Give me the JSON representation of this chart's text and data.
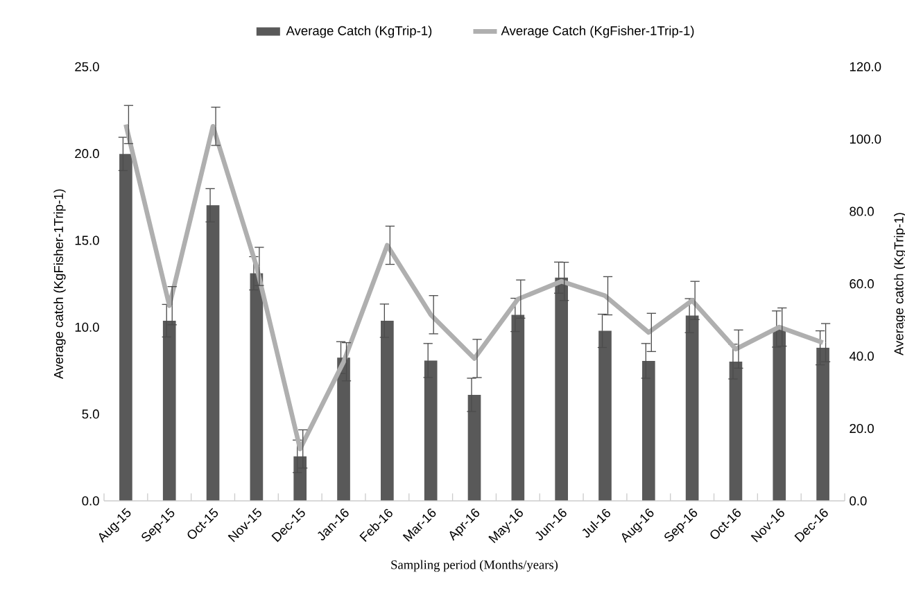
{
  "chart_data": {
    "type": "bar",
    "categories": [
      "Aug-15",
      "Sep-15",
      "Oct-15",
      "Nov-15",
      "Dec-15",
      "Jan-16",
      "Feb-16",
      "Mar-16",
      "Apr-16",
      "May-16",
      "Jun-16",
      "Jul-16",
      "Aug-16",
      "Sep-16",
      "Oct-16",
      "Nov-16",
      "Dec-16"
    ],
    "series": [
      {
        "name": "Average Catch (KgTrip-1)",
        "axis": "y2",
        "color": "#595959",
        "values": [
          95.9,
          49.8,
          81.7,
          62.9,
          12.3,
          39.6,
          49.8,
          38.8,
          29.3,
          51.4,
          61.7,
          47.0,
          38.7,
          51.2,
          38.5,
          47.5,
          42.3
        ],
        "errors": [
          4.6,
          4.5,
          4.6,
          4.6,
          4.5,
          4.4,
          4.6,
          4.7,
          4.6,
          4.6,
          4.3,
          4.6,
          4.8,
          4.7,
          4.8,
          5.0,
          4.7
        ]
      },
      {
        "name": "Average Catch (KgFisher-1Trip-1)",
        "type": "line",
        "color": "#afafaf",
        "values": [
          21.67,
          11.24,
          21.57,
          13.5,
          2.99,
          8.01,
          14.72,
          10.72,
          8.2,
          11.62,
          12.64,
          11.81,
          9.7,
          11.54,
          8.74,
          10.01,
          9.11
        ],
        "errors": [
          1.1,
          1.1,
          1.1,
          1.1,
          1.1,
          1.1,
          1.1,
          1.1,
          1.1,
          1.1,
          1.1,
          1.1,
          1.1,
          1.1,
          1.1,
          1.1,
          1.1
        ]
      }
    ],
    "xlabel": "Sampling period (Months/years)",
    "ylabel": "Average catch (KgFisher-1Trip-1)",
    "y2label": "Average catch (KgTrip-1)",
    "ylim": [
      0,
      25
    ],
    "yticks": [
      {
        "value": 0,
        "label": "0.0"
      },
      {
        "value": 5,
        "label": "5.0"
      },
      {
        "value": 10,
        "label": "10.0"
      },
      {
        "value": 15,
        "label": "15.0"
      },
      {
        "value": 20,
        "label": "20.0"
      },
      {
        "value": 25,
        "label": "25.0"
      }
    ],
    "y2lim": [
      0,
      120
    ],
    "y2ticks": [
      {
        "value": 0,
        "label": "0.0"
      },
      {
        "value": 20,
        "label": "20.0"
      },
      {
        "value": 40,
        "label": "40.0"
      },
      {
        "value": 60,
        "label": "60.0"
      },
      {
        "value": 80,
        "label": "80.0"
      },
      {
        "value": 100,
        "label": "100.0"
      },
      {
        "value": 120,
        "label": "120.0"
      }
    ],
    "legend": "top"
  }
}
